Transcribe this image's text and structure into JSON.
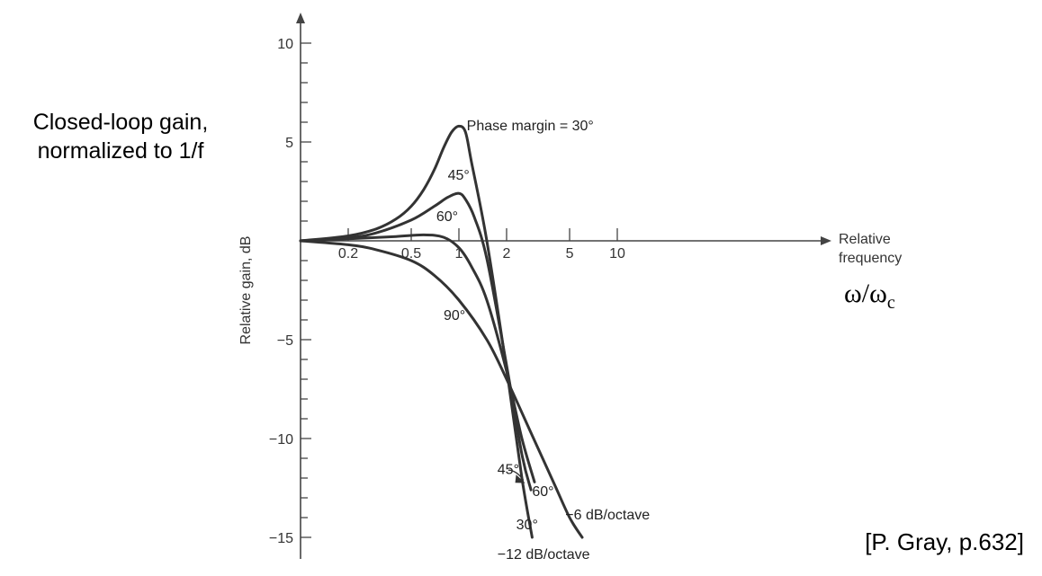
{
  "heading": {
    "line1": "Closed-loop gain,",
    "line2": "normalized to 1/f"
  },
  "x_variable": {
    "main": "ω/ω",
    "sub": "c"
  },
  "citation": "[P. Gray, p.632]",
  "colors": {
    "curve": "#333333",
    "axis": "#444444"
  },
  "chart_data": {
    "type": "line",
    "xscale": "log",
    "xlim": [
      0.1,
      20
    ],
    "ylim": [
      -16,
      11
    ],
    "xlabel": "Relative frequency",
    "xlabel_lines": [
      "Relative",
      "frequency"
    ],
    "ylabel": "Relative gain, dB",
    "xticks": [
      {
        "value": 0.2,
        "label": "0.2"
      },
      {
        "value": 0.5,
        "label": "0.5"
      },
      {
        "value": 1,
        "label": "1"
      },
      {
        "value": 2,
        "label": "2"
      },
      {
        "value": 5,
        "label": "5"
      },
      {
        "value": 10,
        "label": "10"
      }
    ],
    "yticks": [
      {
        "value": 10,
        "label": "10"
      },
      {
        "value": 5,
        "label": "5"
      },
      {
        "value": -5,
        "label": "−5"
      },
      {
        "value": -10,
        "label": "−10"
      },
      {
        "value": -15,
        "label": "−15"
      }
    ],
    "grid": false,
    "series": [
      {
        "name": "Phase margin = 30°",
        "x": [
          0.1,
          0.2,
          0.3,
          0.4,
          0.5,
          0.6,
          0.7,
          0.8,
          0.9,
          1.0,
          1.1,
          1.2,
          1.5,
          2.0,
          2.5,
          2.9
        ],
        "y": [
          0,
          0.25,
          0.6,
          1.1,
          1.75,
          2.6,
          3.6,
          4.7,
          5.5,
          5.8,
          5.5,
          4.0,
          0.0,
          -6.5,
          -12.0,
          -15.0
        ]
      },
      {
        "name": "45°",
        "x": [
          0.1,
          0.2,
          0.3,
          0.5,
          0.7,
          0.85,
          1.0,
          1.1,
          1.25,
          1.5,
          2.0,
          2.5,
          2.85
        ],
        "y": [
          0,
          0.15,
          0.4,
          1.05,
          1.75,
          2.2,
          2.4,
          2.1,
          1.2,
          -0.9,
          -6.3,
          -10.8,
          -12.6
        ]
      },
      {
        "name": "60°",
        "x": [
          0.1,
          0.2,
          0.4,
          0.6,
          0.8,
          1.0,
          1.2,
          1.5,
          2.0,
          2.5,
          3.0
        ],
        "y": [
          0,
          0.1,
          0.22,
          0.3,
          0.18,
          -0.35,
          -1.3,
          -3.0,
          -6.6,
          -10.0,
          -12.2
        ]
      },
      {
        "name": "90°",
        "x": [
          0.1,
          0.2,
          0.3,
          0.5,
          0.7,
          1.0,
          1.5,
          2.0,
          3.0,
          4.0,
          5.0,
          6.0
        ],
        "y": [
          0,
          -0.2,
          -0.45,
          -1.0,
          -1.75,
          -3.0,
          -5.0,
          -7.0,
          -10.1,
          -12.3,
          -14.0,
          -15.0
        ]
      }
    ],
    "annotations": [
      {
        "text": "Phase margin = 30°",
        "x": 1.12,
        "y": 5.6
      },
      {
        "text": "45°",
        "x": 0.85,
        "y": 3.1
      },
      {
        "text": "60°",
        "x": 0.72,
        "y": 1.0
      },
      {
        "text": "90°",
        "x": 0.8,
        "y": -4.0
      },
      {
        "text": "45°",
        "x": 1.75,
        "y": -11.8
      },
      {
        "text": "60°",
        "x": 2.9,
        "y": -12.9
      },
      {
        "text": "30°",
        "x": 2.3,
        "y": -14.6
      },
      {
        "text": "−12 dB/octave",
        "x": 1.75,
        "y": -16.1
      },
      {
        "text": "−6 dB/octave",
        "x": 4.7,
        "y": -14.1
      }
    ]
  }
}
